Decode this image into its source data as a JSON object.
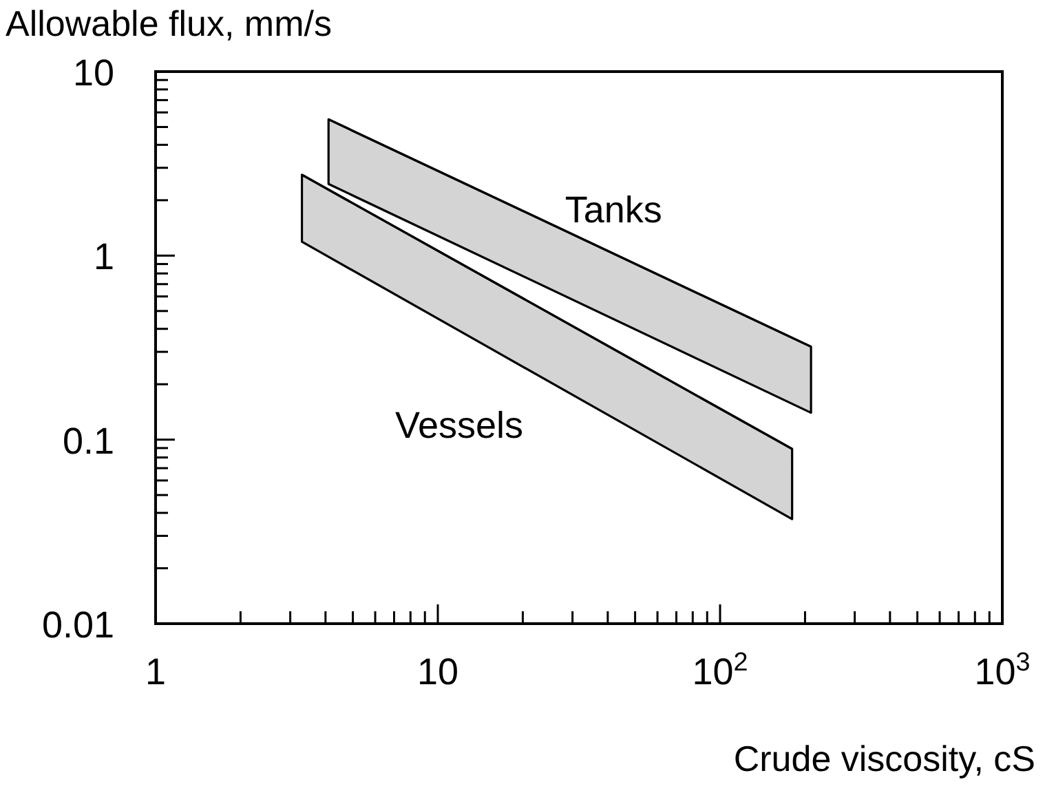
{
  "chart_data": {
    "type": "line",
    "ylabel": "Allowable flux, mm/s",
    "xlabel": "Crude viscosity, cS",
    "log": "xy",
    "grid": false,
    "xlim": [
      1,
      1000
    ],
    "ylim": [
      0.01,
      10
    ],
    "xticks": [
      1,
      {
        "value": 2,
        "label": null
      },
      {
        "value": 3,
        "label": null
      },
      {
        "value": 4,
        "label": null
      },
      {
        "value": 5,
        "label": null
      },
      {
        "value": 6,
        "label": null
      },
      {
        "value": 7,
        "label": null
      },
      {
        "value": 8,
        "label": null
      },
      {
        "value": 9,
        "label": null
      },
      10,
      {
        "value": 20,
        "label": null
      },
      {
        "value": 30,
        "label": null
      },
      {
        "value": 40,
        "label": null
      },
      {
        "value": 50,
        "label": null
      },
      {
        "value": 60,
        "label": null
      },
      {
        "value": 70,
        "label": null
      },
      {
        "value": 80,
        "label": null
      },
      {
        "value": 90,
        "label": null
      },
      {
        "value": 100,
        "label": "10$^{2}$"
      },
      {
        "value": 200,
        "label": null
      },
      {
        "value": 300,
        "label": null
      },
      {
        "value": 400,
        "label": null
      },
      {
        "value": 500,
        "label": null
      },
      {
        "value": 600,
        "label": null
      },
      {
        "value": 700,
        "label": null
      },
      {
        "value": 800,
        "label": null
      },
      {
        "value": 900,
        "label": null
      },
      {
        "value": 1000,
        "label": "10$^{3}$"
      }
    ],
    "yticks": [
      0.01,
      {
        "value": 0.02,
        "label": null
      },
      {
        "value": 0.03,
        "label": null
      },
      {
        "value": 0.04,
        "label": null
      },
      {
        "value": 0.05,
        "label": null
      },
      {
        "value": 0.06,
        "label": null
      },
      {
        "value": 0.07,
        "label": null
      },
      {
        "value": 0.08,
        "label": null
      },
      {
        "value": 0.09,
        "label": null
      },
      0.1,
      {
        "value": 0.2,
        "label": null
      },
      {
        "value": 0.3,
        "label": null
      },
      {
        "value": 0.4,
        "label": null
      },
      {
        "value": 0.5,
        "label": null
      },
      {
        "value": 0.6,
        "label": null
      },
      {
        "value": 0.7,
        "label": null
      },
      {
        "value": 0.8,
        "label": null
      },
      {
        "value": 0.9,
        "label": null
      },
      1,
      {
        "value": 2,
        "label": null
      },
      {
        "value": 3,
        "label": null
      },
      {
        "value": 4,
        "label": null
      },
      {
        "value": 5,
        "label": null
      },
      {
        "value": 6,
        "label": null
      },
      {
        "value": 7,
        "label": null
      },
      {
        "value": 8,
        "label": null
      },
      {
        "value": 9,
        "label": null
      },
      10
    ],
    "series": [
      {
        "name": "Tanks",
        "color": "#000000",
        "x": [
          4.1,
          210
        ],
        "values": [
          5.5,
          0.32
        ],
        "upper": [
          5.5,
          0.32
        ],
        "lower": [
          2.45,
          0.14
        ]
      },
      {
        "name": "Vessels",
        "color": "#000000",
        "x": [
          3.3,
          180
        ],
        "values": [
          2.75,
          0.089
        ],
        "upper": [
          2.75,
          0.089
        ],
        "lower": [
          1.19,
          0.037
        ]
      }
    ]
  }
}
